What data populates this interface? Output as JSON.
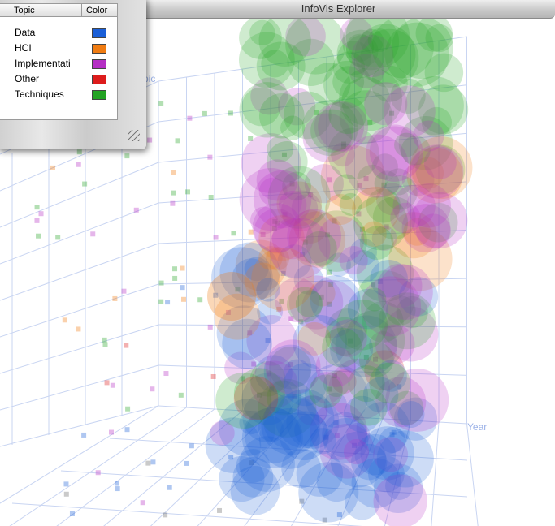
{
  "window": {
    "title": "InfoVis Explorer"
  },
  "legend": {
    "columns": [
      "Topic",
      "Color"
    ],
    "rows": [
      {
        "topic": "Data",
        "color": "#1a5fd8"
      },
      {
        "topic": "HCI",
        "color": "#f07c12"
      },
      {
        "topic": "Implementati",
        "color": "#b52fc4"
      },
      {
        "topic": "Other",
        "color": "#dd1c1c"
      },
      {
        "topic": "Techniques",
        "color": "#24a324"
      }
    ]
  },
  "axes": {
    "year": "Year",
    "topic": "pic"
  }
}
